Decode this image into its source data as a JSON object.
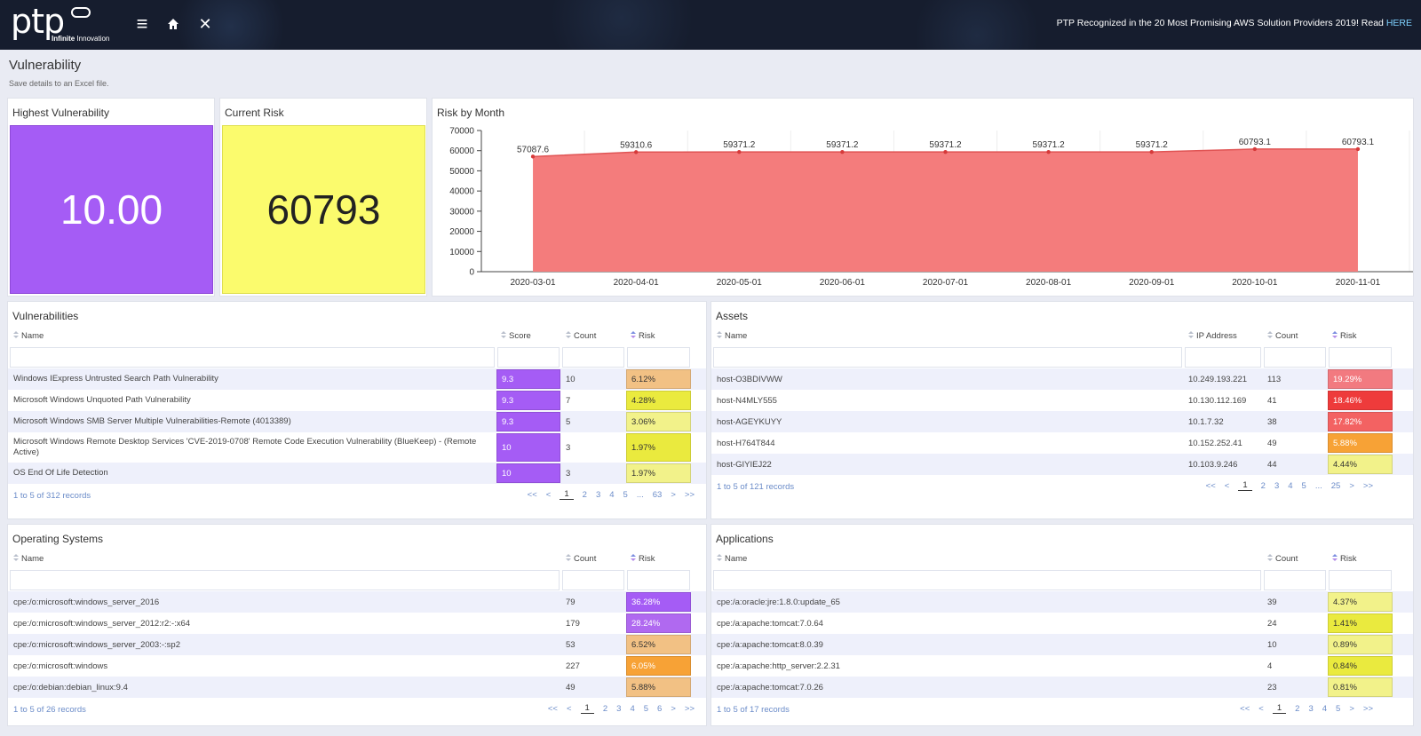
{
  "nav": {
    "brand": "ptp",
    "tagline_bold": "Infinite",
    "tagline_rest": " Innovation",
    "menu_icon": "≡",
    "close_icon": "✕",
    "announcement": "PTP Recognized in the 20 Most Promising AWS Solution Providers 2019! Read ",
    "announcement_link": "HERE"
  },
  "page": {
    "title": "Vulnerability",
    "subtitle": "Save details to an Excel file."
  },
  "kpis": {
    "highest": {
      "title": "Highest Vulnerability",
      "value": "10.00",
      "color": "#a55cf5"
    },
    "current": {
      "title": "Current Risk",
      "value": "60793",
      "color": "#fbfb6d"
    }
  },
  "risk_chart_panel": {
    "title": "Risk by Month"
  },
  "chart_data": {
    "type": "area",
    "title": "Risk by Month",
    "x": [
      "2020-03-01",
      "2020-04-01",
      "2020-05-01",
      "2020-06-01",
      "2020-07-01",
      "2020-08-01",
      "2020-09-01",
      "2020-10-01",
      "2020-11-01"
    ],
    "values": [
      57087.6,
      59310.6,
      59371.2,
      59371.2,
      59371.2,
      59371.2,
      59371.2,
      60793.1,
      60793.1
    ],
    "data_labels": [
      "57087.6",
      "59310.6",
      "59371.2",
      "59371.2",
      "59371.2",
      "59371.2",
      "59371.2",
      "60793.1",
      "60793.1"
    ],
    "yticks": [
      0,
      10000,
      20000,
      30000,
      40000,
      50000,
      60000,
      70000
    ],
    "ylim": [
      0,
      70000
    ],
    "fill_color": "#f47c7c",
    "line_color": "#e05454",
    "grid": true
  },
  "vulnerabilities": {
    "title": "Vulnerabilities",
    "columns": [
      "Name",
      "Score",
      "Count",
      "Risk"
    ],
    "rows": [
      {
        "name": "Windows IExpress Untrusted Search Path Vulnerability",
        "score": "9.3",
        "count": "10",
        "risk": "6.12%",
        "risk_color": "#f2c184"
      },
      {
        "name": "Microsoft Windows Unquoted Path Vulnerability",
        "score": "9.3",
        "count": "7",
        "risk": "4.28%",
        "risk_color": "#eaea3e"
      },
      {
        "name": "Microsoft Windows SMB Server Multiple Vulnerabilities-Remote (4013389)",
        "score": "9.3",
        "count": "5",
        "risk": "3.06%",
        "risk_color": "#f2f28a"
      },
      {
        "name": "Microsoft Windows Remote Desktop Services 'CVE-2019-0708' Remote Code Execution Vulnerability (BlueKeep) - (Remote Active)",
        "score": "10",
        "count": "3",
        "risk": "1.97%",
        "risk_color": "#eaea3e"
      },
      {
        "name": "OS End Of Life Detection",
        "score": "10",
        "count": "3",
        "risk": "1.97%",
        "risk_color": "#f2f28a"
      }
    ],
    "records": "1 to 5 of 312 records",
    "pages": [
      "<<",
      "<",
      "1",
      "2",
      "3",
      "4",
      "5",
      "...",
      "63",
      ">",
      ">>"
    ],
    "score_color": "#a55cf5"
  },
  "assets": {
    "title": "Assets",
    "columns": [
      "Name",
      "IP Address",
      "Count",
      "Risk"
    ],
    "rows": [
      {
        "name": "host-O3BDIVWW",
        "ip": "10.249.193.221",
        "count": "113",
        "risk": "19.29%",
        "risk_color": "#f27a80"
      },
      {
        "name": "host-N4MLY555",
        "ip": "10.130.112.169",
        "count": "41",
        "risk": "18.46%",
        "risk_color": "#ee3b3b"
      },
      {
        "name": "host-AGEYKUYY",
        "ip": "10.1.7.32",
        "count": "38",
        "risk": "17.82%",
        "risk_color": "#f36262"
      },
      {
        "name": "host-H764T844",
        "ip": "10.152.252.41",
        "count": "49",
        "risk": "5.88%",
        "risk_color": "#f7a236"
      },
      {
        "name": "host-GIYIEJ22",
        "ip": "10.103.9.246",
        "count": "44",
        "risk": "4.44%",
        "risk_color": "#f2f28a"
      }
    ],
    "records": "1 to 5 of 121 records",
    "pages": [
      "<<",
      "<",
      "1",
      "2",
      "3",
      "4",
      "5",
      "...",
      "25",
      ">",
      ">>"
    ]
  },
  "operating_systems": {
    "title": "Operating Systems",
    "columns": [
      "Name",
      "Count",
      "Risk"
    ],
    "rows": [
      {
        "name": "cpe:/o:microsoft:windows_server_2016",
        "count": "79",
        "risk": "36.28%",
        "risk_color": "#a55cf5"
      },
      {
        "name": "cpe:/o:microsoft:windows_server_2012:r2:-:x64",
        "count": "179",
        "risk": "28.24%",
        "risk_color": "#b069f0"
      },
      {
        "name": "cpe:/o:microsoft:windows_server_2003:-:sp2",
        "count": "53",
        "risk": "6.52%",
        "risk_color": "#f2c184"
      },
      {
        "name": "cpe:/o:microsoft:windows",
        "count": "227",
        "risk": "6.05%",
        "risk_color": "#f7a236"
      },
      {
        "name": "cpe:/o:debian:debian_linux:9.4",
        "count": "49",
        "risk": "5.88%",
        "risk_color": "#f2c184"
      }
    ],
    "records": "1 to 5 of 26 records",
    "pages": [
      "<<",
      "<",
      "1",
      "2",
      "3",
      "4",
      "5",
      "6",
      ">",
      ">>"
    ]
  },
  "applications": {
    "title": "Applications",
    "columns": [
      "Name",
      "Count",
      "Risk"
    ],
    "rows": [
      {
        "name": "cpe:/a:oracle:jre:1.8.0:update_65",
        "count": "39",
        "risk": "4.37%",
        "risk_color": "#f2f28a"
      },
      {
        "name": "cpe:/a:apache:tomcat:7.0.64",
        "count": "24",
        "risk": "1.41%",
        "risk_color": "#eaea3e"
      },
      {
        "name": "cpe:/a:apache:tomcat:8.0.39",
        "count": "10",
        "risk": "0.89%",
        "risk_color": "#f2f28a"
      },
      {
        "name": "cpe:/a:apache:http_server:2.2.31",
        "count": "4",
        "risk": "0.84%",
        "risk_color": "#eaea3e"
      },
      {
        "name": "cpe:/a:apache:tomcat:7.0.26",
        "count": "23",
        "risk": "0.81%",
        "risk_color": "#f2f28a"
      }
    ],
    "records": "1 to 5 of 17 records",
    "pages": [
      "<<",
      "<",
      "1",
      "2",
      "3",
      "4",
      "5",
      ">",
      ">>"
    ]
  }
}
